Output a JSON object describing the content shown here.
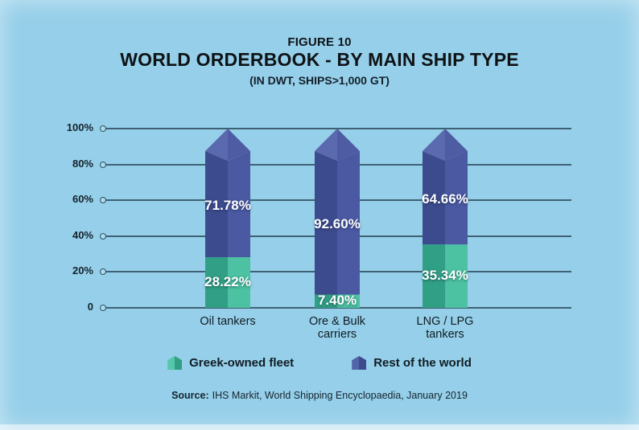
{
  "title": {
    "figure": "FIGURE 10",
    "main": "WORLD ORDERBOOK - BY MAIN SHIP TYPE",
    "subtitle": "(IN DWT, SHIPS>1,000 GT)"
  },
  "chart_data": {
    "type": "bar",
    "stacked": true,
    "title": "WORLD ORDERBOOK - BY MAIN SHIP TYPE",
    "subtitle": "(IN DWT, SHIPS>1,000 GT)",
    "categories": [
      [
        "Oil tankers"
      ],
      [
        "Ore & Bulk",
        "carriers"
      ],
      [
        "LNG / LPG",
        "tankers"
      ]
    ],
    "series": [
      {
        "name": "Greek-owned fleet",
        "values": [
          28.22,
          7.4,
          35.34
        ],
        "labels": [
          "28.22%",
          "7.40%",
          "35.34%"
        ],
        "color_dark": "#319f85",
        "color_light": "#4cc2a2"
      },
      {
        "name": "Rest of the world",
        "values": [
          71.78,
          92.6,
          64.66
        ],
        "labels": [
          "71.78%",
          "92.60%",
          "64.66%"
        ],
        "color_dark": "#3c4b8e",
        "color_light": "#4a59a2",
        "cap_left": "#5b69ae",
        "cap_right": "#4e5ca4"
      }
    ],
    "y_ticks": [
      "100%",
      "80%",
      "60%",
      "40%",
      "20%",
      "0"
    ],
    "ylim": [
      0,
      100
    ],
    "grid": true,
    "legend_position": "bottom"
  },
  "legend": {
    "items": [
      {
        "label": "Greek-owned fleet",
        "color_dark": "#319f85",
        "color_light": "#55c8a9"
      },
      {
        "label": "Rest of the world",
        "color_dark": "#3c4b8e",
        "color_light": "#5364a8"
      }
    ]
  },
  "source": {
    "prefix": "Source:",
    "text": "IHS Markit, World Shipping Encyclopaedia, January 2019"
  },
  "colors": {
    "background": "#96cfe9",
    "grid_line": "#2f4f5f",
    "grid_dot_fill": "#aadcef",
    "value_label": "#ffffff"
  }
}
